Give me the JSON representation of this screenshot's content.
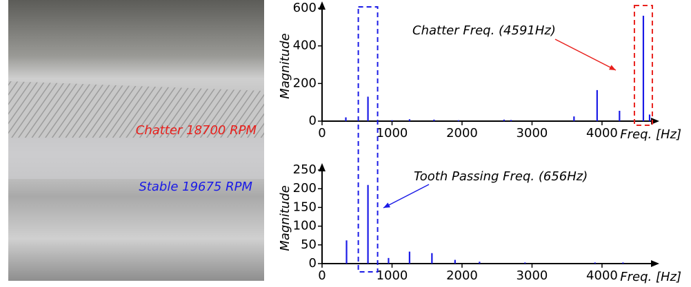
{
  "photo": {
    "labels": [
      {
        "text": "Chatter 18700 RPM",
        "color": "#e8201c"
      },
      {
        "text": "Stable 19675 RPM",
        "color": "#1a1ae6"
      }
    ]
  },
  "chart_data": [
    {
      "type": "stem",
      "ylabel": "Magnitude",
      "xlabel": "Freq. [Hz]",
      "annotation": "Chatter Freq.  (4591Hz)",
      "color": "#1a1ae6",
      "x": [
        340,
        656,
        1000,
        1250,
        1600,
        1950,
        2600,
        2700,
        3600,
        3930,
        4250,
        4591,
        4680
      ],
      "values": [
        20,
        130,
        5,
        10,
        8,
        5,
        8,
        6,
        25,
        165,
        55,
        560,
        35
      ],
      "xlim": [
        0,
        4700
      ],
      "ylim": [
        0,
        600
      ],
      "xticks": [
        0,
        1000,
        2000,
        3000,
        4000
      ],
      "yticks": [
        0,
        200,
        400,
        600
      ]
    },
    {
      "type": "stem",
      "ylabel": "Magnitude",
      "xlabel": "Freq. [Hz]",
      "annotation": "Tooth Passing Freq. (656Hz)",
      "color": "#1a1ae6",
      "x": [
        350,
        656,
        950,
        1250,
        1570,
        1900,
        2250,
        2900,
        3900,
        4300
      ],
      "values": [
        62,
        210,
        15,
        32,
        28,
        10,
        5,
        3,
        3,
        3
      ],
      "xlim": [
        0,
        4700
      ],
      "ylim": [
        0,
        250
      ],
      "xticks": [
        0,
        1000,
        2000,
        3000,
        4000
      ],
      "yticks": [
        0,
        50,
        100,
        150,
        200,
        250
      ]
    }
  ]
}
